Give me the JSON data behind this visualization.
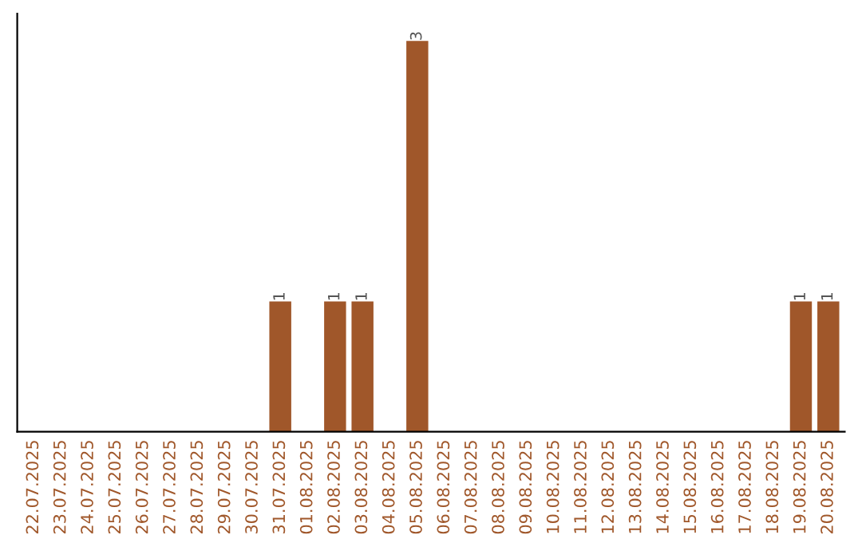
{
  "chart_data": {
    "type": "bar",
    "categories": [
      "22.07.2025",
      "23.07.2025",
      "24.07.2025",
      "25.07.2025",
      "26.07.2025",
      "27.07.2025",
      "28.07.2025",
      "29.07.2025",
      "30.07.2025",
      "31.07.2025",
      "01.08.2025",
      "02.08.2025",
      "03.08.2025",
      "04.08.2025",
      "05.08.2025",
      "06.08.2025",
      "07.08.2025",
      "08.08.2025",
      "09.08.2025",
      "10.08.2025",
      "11.08.2025",
      "12.08.2025",
      "13.08.2025",
      "14.08.2025",
      "15.08.2025",
      "16.08.2025",
      "17.08.2025",
      "18.08.2025",
      "19.08.2025",
      "20.08.2025"
    ],
    "values": [
      0,
      0,
      0,
      0,
      0,
      0,
      0,
      0,
      0,
      1,
      0,
      1,
      1,
      0,
      3,
      0,
      0,
      0,
      0,
      0,
      0,
      0,
      0,
      0,
      0,
      0,
      0,
      0,
      1,
      1
    ],
    "value_labels": [
      null,
      null,
      null,
      null,
      null,
      null,
      null,
      null,
      null,
      "1",
      null,
      "1",
      "1",
      null,
      "3",
      null,
      null,
      null,
      null,
      null,
      null,
      null,
      null,
      null,
      null,
      null,
      null,
      null,
      "1",
      "1"
    ],
    "color": "#a0572a",
    "tick_labels": "x",
    "grid": false,
    "legend": false
  }
}
